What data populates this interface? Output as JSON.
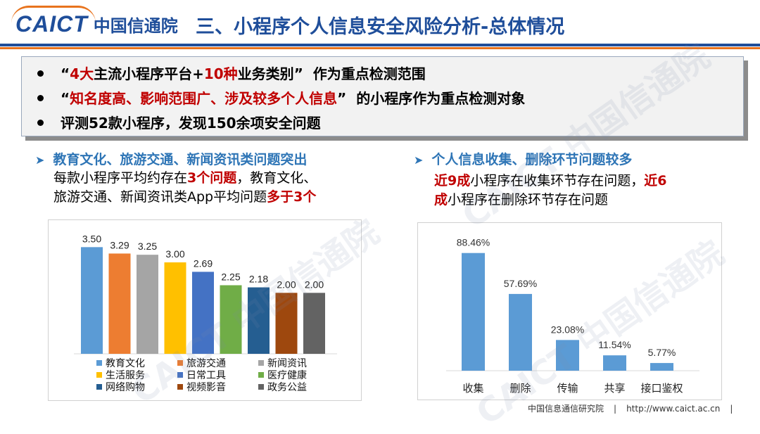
{
  "header": {
    "logo_text": "CAICT",
    "logo_cn": "中国信通院",
    "title": "三、小程序个人信息安全风险分析-总体情况"
  },
  "summary": {
    "b1": {
      "q1": "“",
      "r1": "4大",
      "t1": "主流小程序平台+",
      "r2": "10种",
      "t2": "业务类别",
      "q2": "”",
      "t3": "作为重点检测范围"
    },
    "b2": {
      "q1": "“",
      "r1": "知名度高、影响范围广、涉及较多个人信息",
      "q2": "”",
      "t1": "的小程序作为重点检测对象"
    },
    "b3": {
      "t1": "评测52款小程序，发现150余项安全问题"
    }
  },
  "left_section": {
    "heading": "教育文化、旅游交通、新闻资讯类问题突出",
    "l1a": "每款小程序平均约存在",
    "l1b": "3个问题",
    "l1c": "，教育文化、",
    "l2a": "旅游交通、新闻资讯类App平均问题",
    "l2b": "多于3个"
  },
  "right_section": {
    "heading": "个人信息收集、删除环节问题较多",
    "l1a": "近9成",
    "l1b": "小程序在收集环节存在问题，",
    "l1c": "近6",
    "l2a": "成",
    "l2b": "小程序在删除环节存在问题"
  },
  "chart_data": [
    {
      "type": "bar",
      "categories": [
        "教育文化",
        "旅游交通",
        "新闻资讯",
        "生活服务",
        "日常工具",
        "医疗健康",
        "网络购物",
        "视频影音",
        "政务公益"
      ],
      "values": [
        3.5,
        3.29,
        3.25,
        3.0,
        2.69,
        2.25,
        2.18,
        2.0,
        2.0
      ],
      "value_labels": [
        "3.50",
        "3.29",
        "3.25",
        "3.00",
        "2.69",
        "2.25",
        "2.18",
        "2.00",
        "2.00"
      ],
      "colors": [
        "#5b9bd5",
        "#ed7d31",
        "#a5a5a5",
        "#ffc000",
        "#4472c4",
        "#70ad47",
        "#255e91",
        "#9e480e",
        "#636363"
      ],
      "legend_position": "bottom",
      "ylim": [
        0,
        3.6
      ]
    },
    {
      "type": "bar",
      "categories": [
        "收集",
        "删除",
        "传输",
        "共享",
        "接口鉴权"
      ],
      "values": [
        88.46,
        57.69,
        23.08,
        11.54,
        5.77
      ],
      "value_labels": [
        "88.46%",
        "57.69%",
        "23.08%",
        "11.54%",
        "5.77%"
      ],
      "bar_color": "#5b9bd5",
      "ylim": [
        0,
        92
      ]
    }
  ],
  "footer": {
    "org": "中国信息通信研究院",
    "sep1": "|",
    "url": "http://www.caict.ac.cn",
    "sep2": "|"
  },
  "watermark": {
    "text1": "CAICT 中国信通院",
    "text2": "CAICT 中国信通院",
    "text3": "CAICT 中国信通院"
  }
}
